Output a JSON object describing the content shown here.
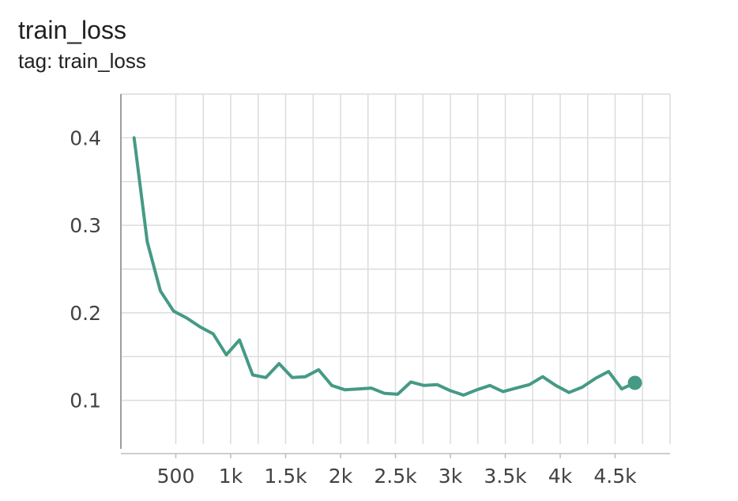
{
  "card": {
    "title": "train_loss",
    "subtitle": "tag: train_loss"
  },
  "chart_data": {
    "type": "line",
    "title": "train_loss",
    "subtitle": "tag: train_loss",
    "xlabel": "",
    "ylabel": "",
    "xlim": [
      0,
      5000
    ],
    "ylim": [
      0.05,
      0.45
    ],
    "grid": true,
    "x_ticks": [
      {
        "value": 500,
        "label": "500"
      },
      {
        "value": 1000,
        "label": "1k"
      },
      {
        "value": 1500,
        "label": "1.5k"
      },
      {
        "value": 2000,
        "label": "2k"
      },
      {
        "value": 2500,
        "label": "2.5k"
      },
      {
        "value": 3000,
        "label": "3k"
      },
      {
        "value": 3500,
        "label": "3.5k"
      },
      {
        "value": 4000,
        "label": "4k"
      },
      {
        "value": 4500,
        "label": "4.5k"
      }
    ],
    "y_ticks": [
      {
        "value": 0.1,
        "label": "0.1"
      },
      {
        "value": 0.2,
        "label": "0.2"
      },
      {
        "value": 0.3,
        "label": "0.3"
      },
      {
        "value": 0.4,
        "label": "0.4"
      }
    ],
    "series": [
      {
        "color": "#459a85",
        "x": [
          120,
          240,
          360,
          480,
          600,
          720,
          840,
          960,
          1080,
          1200,
          1320,
          1440,
          1560,
          1680,
          1800,
          1920,
          2040,
          2160,
          2280,
          2400,
          2520,
          2640,
          2760,
          2880,
          3000,
          3120,
          3240,
          3360,
          3480,
          3600,
          3720,
          3840,
          3960,
          4080,
          4200,
          4320,
          4440,
          4560,
          4680
        ],
        "y": [
          0.4,
          0.281,
          0.225,
          0.202,
          0.194,
          0.184,
          0.176,
          0.152,
          0.169,
          0.129,
          0.126,
          0.142,
          0.126,
          0.127,
          0.135,
          0.117,
          0.112,
          0.113,
          0.114,
          0.108,
          0.107,
          0.121,
          0.117,
          0.118,
          0.111,
          0.106,
          0.112,
          0.117,
          0.11,
          0.114,
          0.118,
          0.127,
          0.117,
          0.109,
          0.115,
          0.125,
          0.133,
          0.113,
          0.12
        ]
      }
    ]
  }
}
